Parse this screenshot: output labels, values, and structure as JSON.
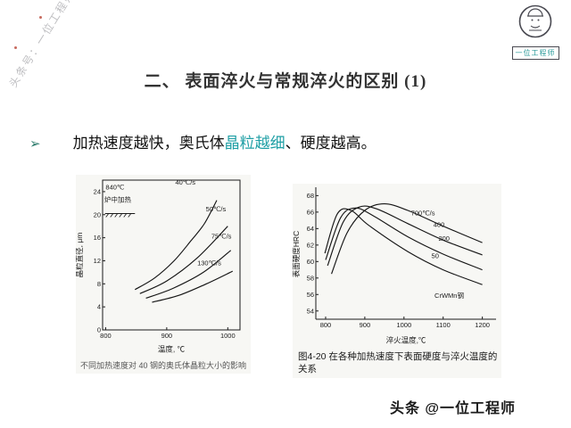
{
  "watermark": {
    "text": "头条号：一位工程师"
  },
  "logo": {
    "label": "一位工程师"
  },
  "title": {
    "text": "二、 表面淬火与常规淬火的区别 (1)"
  },
  "bullet": {
    "marker": "➢",
    "pre": "加热速度越快，奥氏体",
    "highlight": "晶粒越细",
    "post": "、硬度越高。"
  },
  "footer": {
    "text": "头条 @一位工程师"
  },
  "colors": {
    "highlight": "#1f9fa5",
    "bullet_marker": "#2f7d6e",
    "watermark": "#bfbfc2"
  },
  "chart_data": [
    {
      "type": "line",
      "title": "",
      "xlabel": "温度, ℃",
      "ylabel": "晶粒直径, μm",
      "xlim": [
        795,
        1020
      ],
      "ylim": [
        0,
        26
      ],
      "xticks": [
        800,
        900,
        1000
      ],
      "yticks": [
        0,
        4,
        8,
        12,
        16,
        20,
        24
      ],
      "grid": false,
      "series": [
        {
          "name": "40℃/s",
          "points": [
            [
              848,
              7
            ],
            [
              880,
              9
            ],
            [
              912,
              12
            ],
            [
              940,
              15.5
            ],
            [
              962,
              18.5
            ],
            [
              982,
              22.5
            ]
          ]
        },
        {
          "name": "50℃/s",
          "points": [
            [
              856,
              6.3
            ],
            [
              900,
              8.5
            ],
            [
              950,
              12.5
            ],
            [
              1000,
              18
            ]
          ]
        },
        {
          "name": "75℃/s",
          "points": [
            [
              866,
              5.5
            ],
            [
              910,
              7.2
            ],
            [
              960,
              10
            ],
            [
              1005,
              13.8
            ]
          ]
        },
        {
          "name": "130℃/s",
          "points": [
            [
              876,
              4.8
            ],
            [
              920,
              6
            ],
            [
              965,
              8
            ],
            [
              1008,
              10.2
            ]
          ]
        }
      ],
      "labels": [
        {
          "text": "40℃/s",
          "x": 914,
          "y": 25.2
        },
        {
          "text": "50℃/s",
          "x": 964,
          "y": 20.6
        },
        {
          "text": "75℃/s",
          "x": 973,
          "y": 15.9
        },
        {
          "text": "130℃/s",
          "x": 950,
          "y": 11.2
        },
        {
          "text": "840℃",
          "x": 800,
          "y": 24.4
        },
        {
          "text": "炉中加热",
          "x": 798,
          "y": 22.2
        }
      ],
      "hatch": {
        "x1": 799,
        "x2": 848,
        "y": 20.2
      },
      "caption": "不同加热速度对 40 钢的奥氏体晶粒大小的影响"
    },
    {
      "type": "line",
      "title": "",
      "xlabel": "淬火温度,℃",
      "ylabel": "表面硬度HRC",
      "xlim": [
        775,
        1235
      ],
      "ylim": [
        53,
        68.8
      ],
      "xticks": [
        800,
        900,
        1000,
        1100,
        1200
      ],
      "yticks": [
        54,
        56,
        58,
        60,
        62,
        64,
        66,
        68
      ],
      "grid": false,
      "series": [
        {
          "name": "700℃/s",
          "points": [
            [
              815,
              58.5
            ],
            [
              855,
              63.5
            ],
            [
              900,
              66.2
            ],
            [
              950,
              67
            ],
            [
              1010,
              66.2
            ],
            [
              1100,
              64.3
            ],
            [
              1200,
              62.3
            ]
          ]
        },
        {
          "name": "400",
          "points": [
            [
              805,
              59.5
            ],
            [
              845,
              64.8
            ],
            [
              885,
              66.6
            ],
            [
              930,
              66.4
            ],
            [
              1010,
              64.6
            ],
            [
              1100,
              62.6
            ],
            [
              1200,
              60.8
            ]
          ]
        },
        {
          "name": "200",
          "points": [
            [
              800,
              60.2
            ],
            [
              838,
              65.3
            ],
            [
              875,
              66.5
            ],
            [
              920,
              65.6
            ],
            [
              1010,
              63
            ],
            [
              1100,
              60.9
            ],
            [
              1200,
              59
            ]
          ]
        },
        {
          "name": "50",
          "points": [
            [
              798,
              61
            ],
            [
              830,
              65.8
            ],
            [
              865,
              66.2
            ],
            [
              910,
              64.4
            ],
            [
              1010,
              61.2
            ],
            [
              1100,
              59
            ],
            [
              1200,
              57.2
            ]
          ]
        }
      ],
      "labels": [
        {
          "text": "700℃/s",
          "x": 1018,
          "y": 65.6
        },
        {
          "text": "400",
          "x": 1075,
          "y": 64.2
        },
        {
          "text": "200",
          "x": 1088,
          "y": 62.5
        },
        {
          "text": "50",
          "x": 1070,
          "y": 60.4
        },
        {
          "text": "CrWMn钢",
          "x": 1078,
          "y": 55.6
        }
      ],
      "caption": "图4-20 在各种加热速度下表面硬度与淬火温度的关系"
    }
  ]
}
